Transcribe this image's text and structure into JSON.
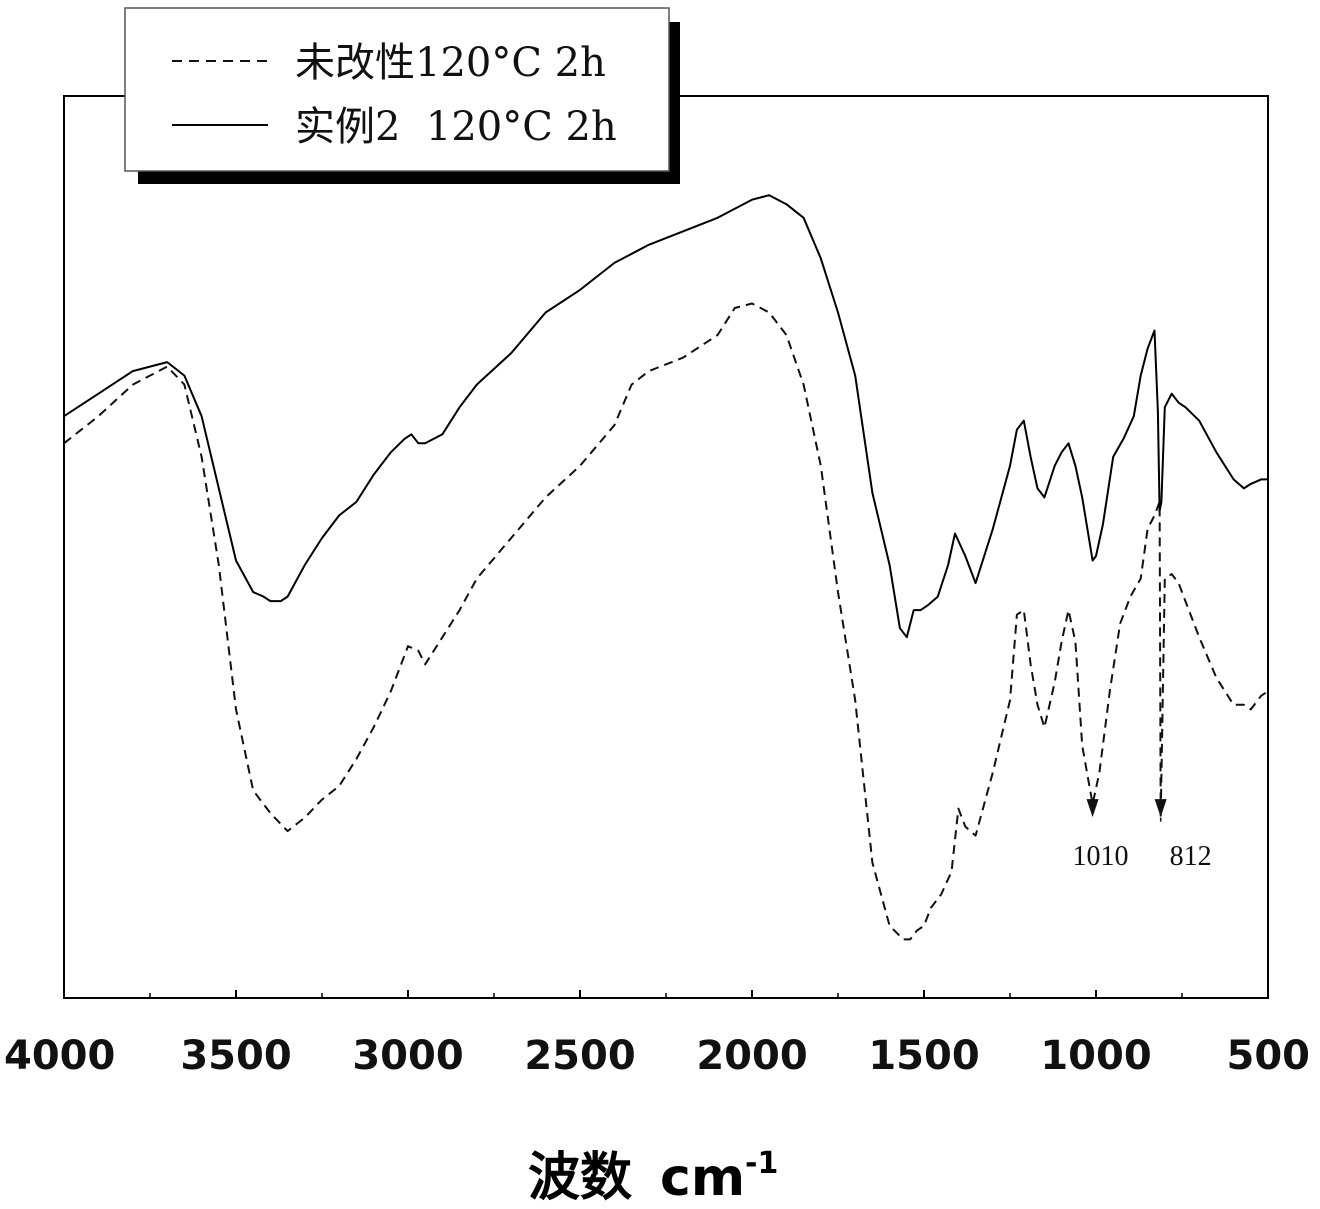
{
  "chart_data": {
    "type": "line",
    "title": "",
    "xlabel": "波数",
    "xlabel_unit_base": "cm",
    "xlabel_unit_exp": "-1",
    "ylabel": "",
    "xlim": [
      4000,
      500
    ],
    "ylim": [
      0,
      100
    ],
    "x_reversed": true,
    "x_ticks": [
      4000,
      3500,
      3000,
      2500,
      2000,
      1500,
      1000,
      500
    ],
    "y_ticks_shown": false,
    "grid": false,
    "legend_position": "top-left",
    "series": [
      {
        "name": "未改性120°C 2h",
        "style": "dashed",
        "color": "#111111",
        "x": [
          4000,
          3900,
          3800,
          3700,
          3650,
          3600,
          3550,
          3500,
          3450,
          3400,
          3350,
          3300,
          3250,
          3200,
          3150,
          3100,
          3050,
          3000,
          2970,
          2950,
          2900,
          2850,
          2800,
          2700,
          2600,
          2500,
          2400,
          2350,
          2300,
          2200,
          2100,
          2050,
          2000,
          1950,
          1900,
          1850,
          1800,
          1750,
          1700,
          1650,
          1600,
          1560,
          1540,
          1520,
          1500,
          1480,
          1450,
          1420,
          1400,
          1380,
          1350,
          1300,
          1250,
          1230,
          1210,
          1190,
          1170,
          1150,
          1120,
          1100,
          1080,
          1060,
          1040,
          1010,
          990,
          960,
          930,
          900,
          870,
          850,
          830,
          815,
          812,
          800,
          780,
          760,
          740,
          700,
          650,
          600,
          570,
          550,
          520,
          500
        ],
        "values": [
          61.5,
          64.5,
          68,
          70,
          68,
          60,
          48,
          32,
          23,
          20.5,
          18.5,
          20,
          22,
          23.5,
          26.5,
          30,
          34,
          39,
          38.5,
          37,
          40,
          43,
          46.5,
          51,
          55.5,
          59,
          63.5,
          68,
          69.5,
          71,
          73.5,
          76.5,
          77,
          76,
          73.5,
          68,
          59,
          45,
          33,
          15,
          8,
          6.5,
          6.5,
          7.5,
          8,
          10,
          11.5,
          14,
          21,
          19,
          18,
          25,
          33,
          42.5,
          43,
          37,
          32.5,
          30,
          35,
          39.5,
          43,
          39.5,
          28,
          21.5,
          25,
          34,
          41.5,
          44.5,
          46.5,
          52,
          53.5,
          55,
          20,
          46.5,
          47,
          46,
          44,
          40,
          35.5,
          32.5,
          32.5,
          32,
          33.5,
          34
        ]
      },
      {
        "name": "实例2  120°C 2h",
        "style": "solid",
        "color": "#000000",
        "x": [
          4000,
          3900,
          3800,
          3700,
          3650,
          3600,
          3550,
          3500,
          3450,
          3420,
          3400,
          3370,
          3350,
          3300,
          3250,
          3200,
          3150,
          3100,
          3050,
          3010,
          2990,
          2970,
          2950,
          2900,
          2850,
          2800,
          2700,
          2600,
          2500,
          2400,
          2300,
          2200,
          2100,
          2050,
          2000,
          1950,
          1900,
          1850,
          1800,
          1750,
          1700,
          1650,
          1600,
          1570,
          1550,
          1530,
          1510,
          1490,
          1460,
          1430,
          1410,
          1380,
          1350,
          1300,
          1250,
          1230,
          1210,
          1190,
          1170,
          1150,
          1120,
          1100,
          1080,
          1060,
          1040,
          1010,
          1000,
          980,
          950,
          920,
          890,
          870,
          850,
          830,
          820,
          815,
          810,
          800,
          780,
          760,
          740,
          700,
          650,
          600,
          570,
          550,
          520,
          500
        ],
        "values": [
          64.5,
          67,
          69.5,
          70.5,
          69,
          64.5,
          56.5,
          48.5,
          45,
          44.5,
          44,
          44,
          44.5,
          48,
          51,
          53.5,
          55,
          58,
          60.5,
          62,
          62.5,
          61.5,
          61.5,
          62.5,
          65.5,
          68,
          71.5,
          76,
          78.5,
          81.5,
          83.5,
          85,
          86.5,
          87.5,
          88.5,
          89,
          88,
          86.5,
          82,
          76,
          69,
          56,
          48,
          41,
          40,
          43,
          43,
          43.5,
          44.5,
          48,
          51.5,
          49,
          46,
          52,
          59,
          63,
          64,
          60,
          56.5,
          55.5,
          59,
          60.5,
          61.5,
          59,
          55.5,
          48.5,
          49,
          52.5,
          60,
          62,
          64.5,
          69,
          72,
          74,
          65,
          54,
          55,
          65.5,
          67,
          66,
          65.5,
          64,
          60.5,
          57.5,
          56.5,
          57,
          57.5,
          57.5
        ]
      }
    ],
    "annotations": [
      {
        "text": "1010",
        "x": 1010,
        "on_series": 0
      },
      {
        "text": "812",
        "x": 812,
        "on_series": 0
      }
    ]
  }
}
